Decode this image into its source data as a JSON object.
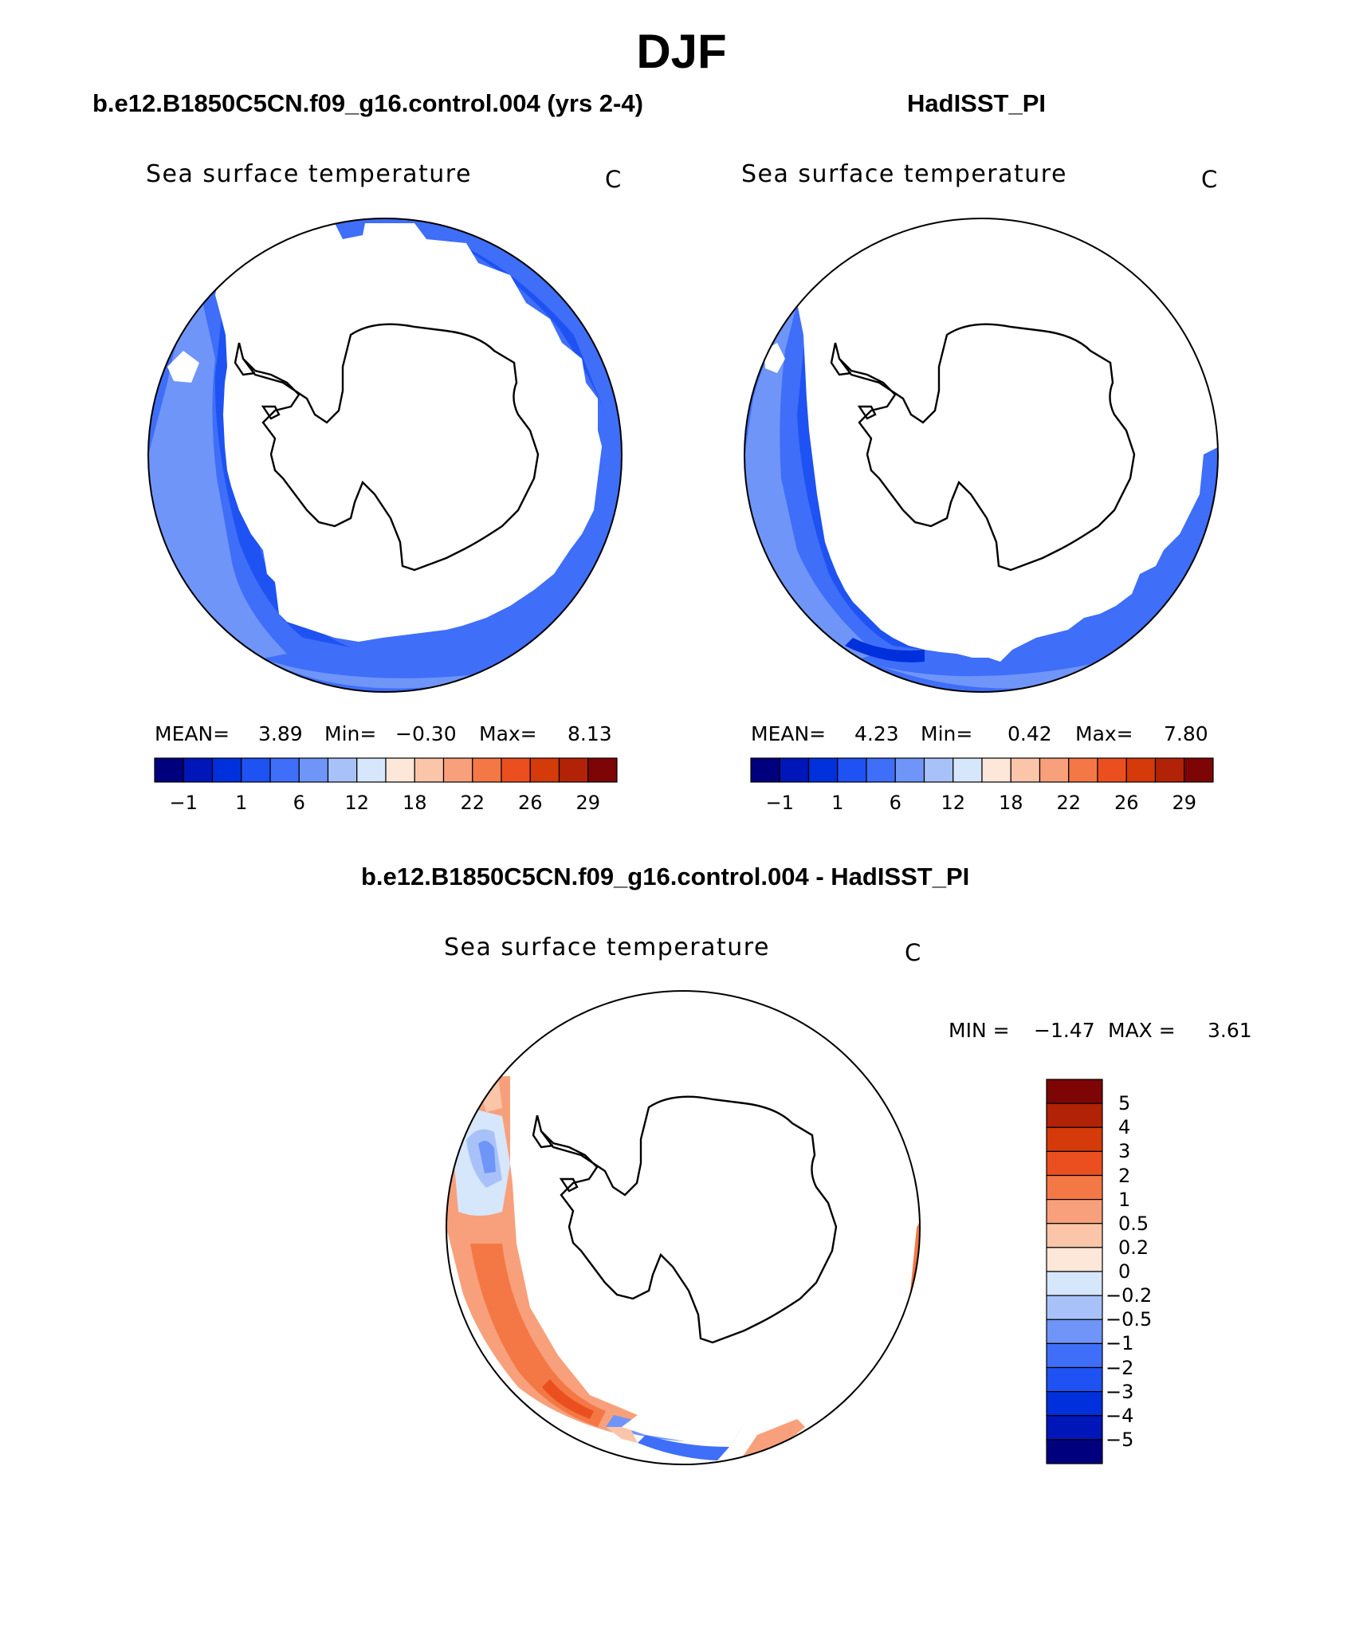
{
  "figure": {
    "season": "DJF",
    "colors": {
      "sst_levels": [
        "#00007f",
        "#0016b8",
        "#0030dc",
        "#1f52f2",
        "#3f6ef8",
        "#6f95f8",
        "#a8c2f9",
        "#d6e6fb",
        "#fde7d9",
        "#fbc5a9",
        "#f8a07b",
        "#f37845",
        "#ec4f1f",
        "#d53a0a",
        "#b22206",
        "#7d0505"
      ],
      "land_outline": "#000000"
    },
    "panels": {
      "model": {
        "case_title": "b.e12.B1850C5CN.f09_g16.control.004 (yrs 2-4)",
        "subtitle": "Sea surface temperature",
        "units": "C",
        "stats": {
          "mean_label": "MEAN=",
          "mean": "3.89",
          "min_label": "Min=",
          "min": "−0.30",
          "max_label": "Max=",
          "max": "8.13"
        },
        "colorbar_ticks": [
          "−1",
          "1",
          "6",
          "12",
          "18",
          "22",
          "26",
          "29"
        ]
      },
      "obs": {
        "case_title": "HadISST_PI",
        "subtitle": "Sea surface temperature",
        "units": "C",
        "stats": {
          "mean_label": "MEAN=",
          "mean": "4.23",
          "min_label": "Min=",
          "min": "0.42",
          "max_label": "Max=",
          "max": "7.80"
        },
        "colorbar_ticks": [
          "−1",
          "1",
          "6",
          "12",
          "18",
          "22",
          "26",
          "29"
        ]
      },
      "diff": {
        "case_title": "b.e12.B1850C5CN.f09_g16.control.004 - HadISST_PI",
        "subtitle": "Sea surface temperature",
        "units": "C",
        "stats": {
          "min_label": "MIN =",
          "min": "−1.47",
          "max_label": "MAX =",
          "max": "3.61"
        },
        "colorbar_ticks": [
          "5",
          "4",
          "3",
          "2",
          "1",
          "0.5",
          "0.2",
          "0",
          "−0.2",
          "−0.5",
          "−1",
          "−2",
          "−3",
          "−4",
          "−5"
        ],
        "colorbar_colors": [
          "#7d0505",
          "#b22206",
          "#d53a0a",
          "#ec4f1f",
          "#f37845",
          "#f8a07b",
          "#fbc5a9",
          "#fde7d9",
          "#d6e6fb",
          "#a8c2f9",
          "#6f95f8",
          "#3f6ef8",
          "#1f52f2",
          "#0030dc",
          "#0016b8",
          "#00007f"
        ]
      }
    }
  }
}
